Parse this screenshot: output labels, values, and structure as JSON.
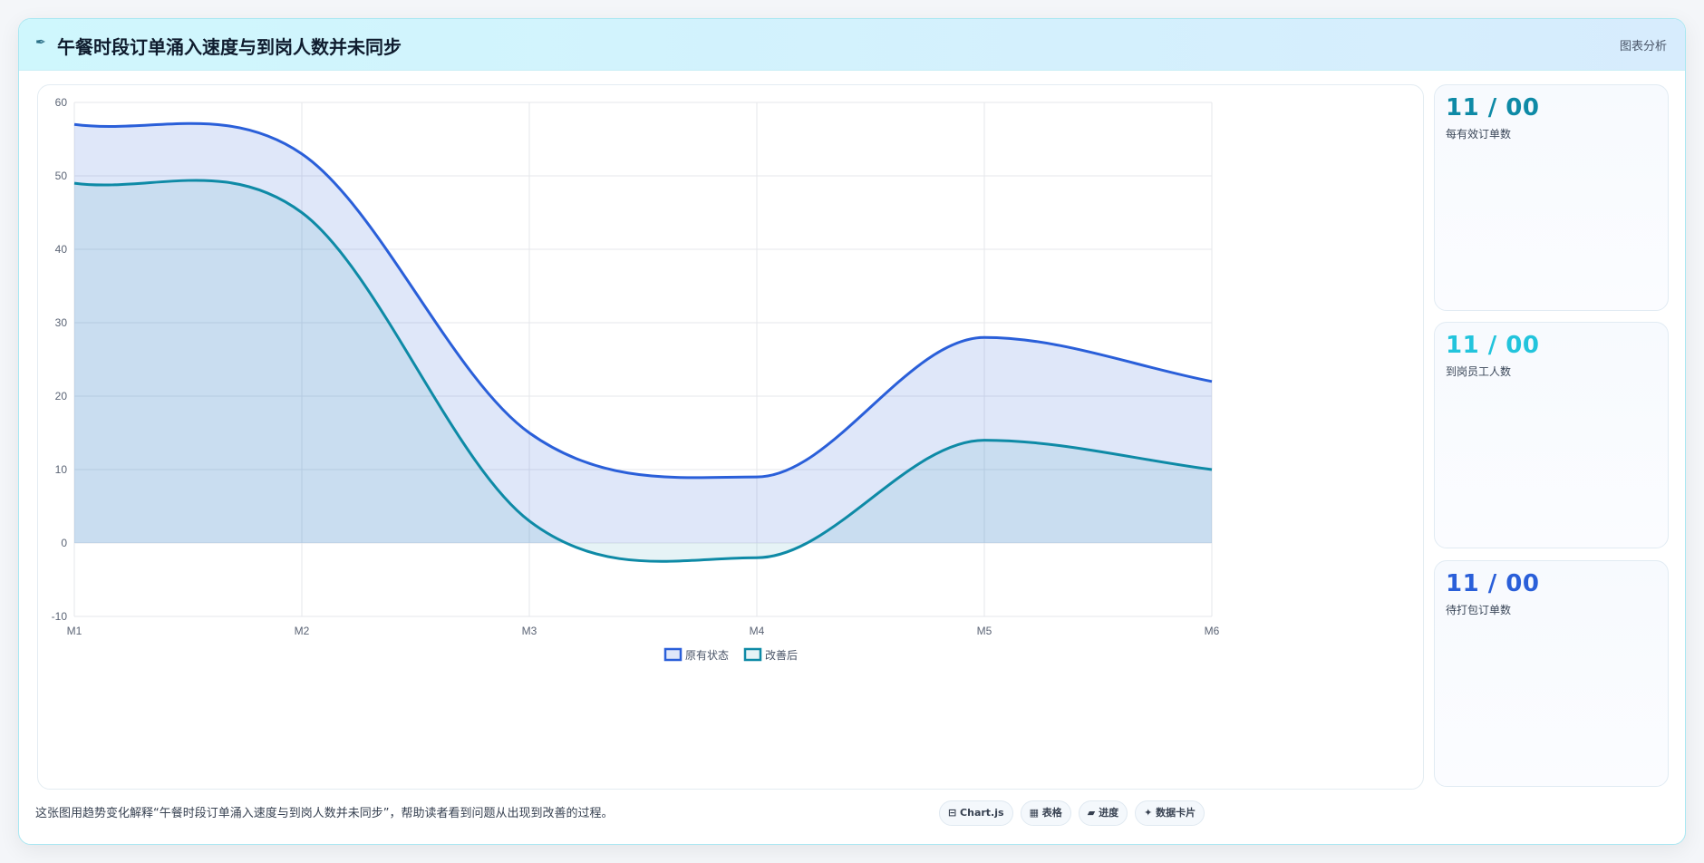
{
  "header": {
    "icon": "pen-icon",
    "icon_glyph": "✒",
    "title": "午餐时段订单涌入速度与到岗人数并未同步",
    "action_label": "图表分析"
  },
  "stats": [
    {
      "value": "11 / 00",
      "label": "每有效订单数",
      "color": "#0e8aa6"
    },
    {
      "value": "11 / 00",
      "label": "到岗员工人数",
      "color": "#22c4dc"
    },
    {
      "value": "11 / 00",
      "label": "待打包订单数",
      "color": "#2a5fd9"
    }
  ],
  "footer": {
    "description": "这张图用趋势变化解释“午餐时段订单涌入速度与到岗人数并未同步”，帮助读者看到问题从出现到改善的过程。",
    "tags": [
      "⊟ Chart.js",
      "▦ 表格",
      "▰ 进度",
      "✦ 数据卡片"
    ]
  },
  "chart_data": {
    "type": "area",
    "categories": [
      "M1",
      "M2",
      "M3",
      "M4",
      "M5",
      "M6"
    ],
    "ylim": [
      -10,
      60
    ],
    "yticks": [
      -10,
      0,
      10,
      20,
      30,
      40,
      50,
      60
    ],
    "grid": true,
    "legend_position": "bottom-center",
    "series": [
      {
        "name": "原有状态",
        "values": [
          57,
          53,
          15,
          9,
          28,
          22
        ],
        "color": "#2a5fd9",
        "fill": "rgba(42,95,217,0.15)"
      },
      {
        "name": "改善后",
        "values": [
          49,
          45,
          3,
          -2,
          14,
          10
        ],
        "color": "#0e8aa6",
        "fill": "rgba(14,138,166,0.10)"
      }
    ]
  }
}
